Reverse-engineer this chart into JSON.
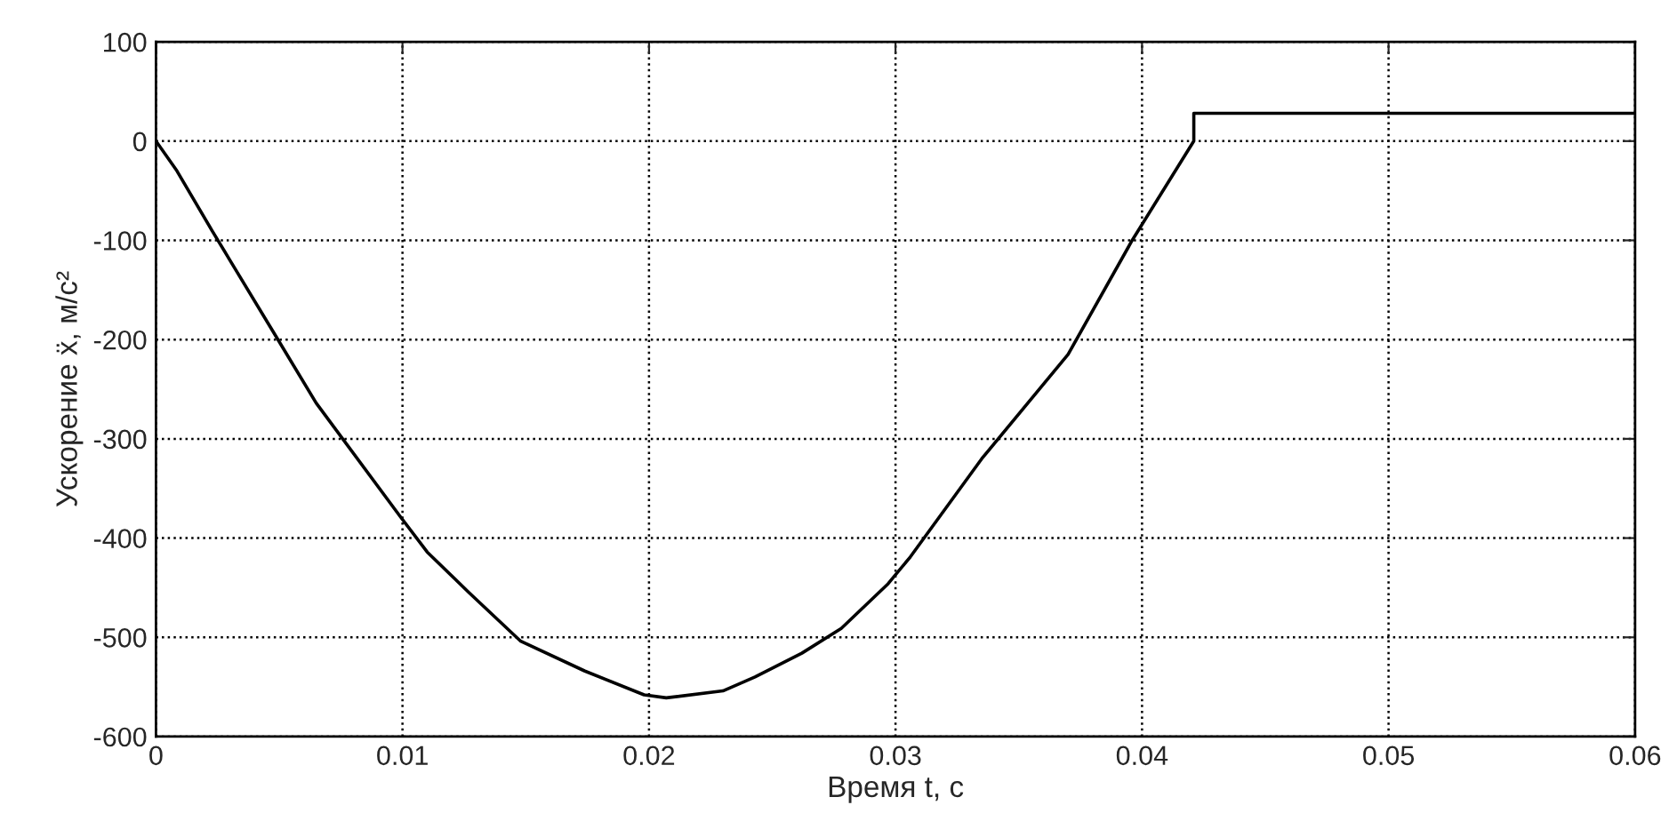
{
  "chart_data": {
    "type": "line",
    "xlabel": "Время t, с",
    "ylabel": "Ускорение ẍ, м/с²",
    "x": [
      0,
      0.00085,
      0.00227,
      0.003,
      0.0049,
      0.0065,
      0.0099,
      0.011,
      0.0127,
      0.0148,
      0.0174,
      0.0198,
      0.0207,
      0.023,
      0.0243,
      0.0262,
      0.0278,
      0.0297,
      0.0306,
      0.0335,
      0.037,
      0.0396,
      0.0421,
      0.0421,
      0.06
    ],
    "series": [
      {
        "color": "#000000",
        "values": [
          0,
          -30,
          -90,
          -120,
          -198,
          -264,
          -378,
          -414,
          -455,
          -504,
          -534,
          -558,
          -561,
          -554,
          -540,
          -516,
          -491,
          -446,
          -419,
          -320,
          -215,
          -100,
          0,
          28,
          28
        ]
      }
    ],
    "xlim": [
      0,
      0.06
    ],
    "ylim": [
      -600,
      100
    ],
    "xticks": [
      0,
      0.01,
      0.02,
      0.03,
      0.04,
      0.05,
      0.06
    ],
    "yticks": [
      -600,
      -500,
      -400,
      -300,
      -200,
      -100,
      0,
      100
    ],
    "grid": true,
    "line_style": "solid",
    "marker": "none"
  }
}
